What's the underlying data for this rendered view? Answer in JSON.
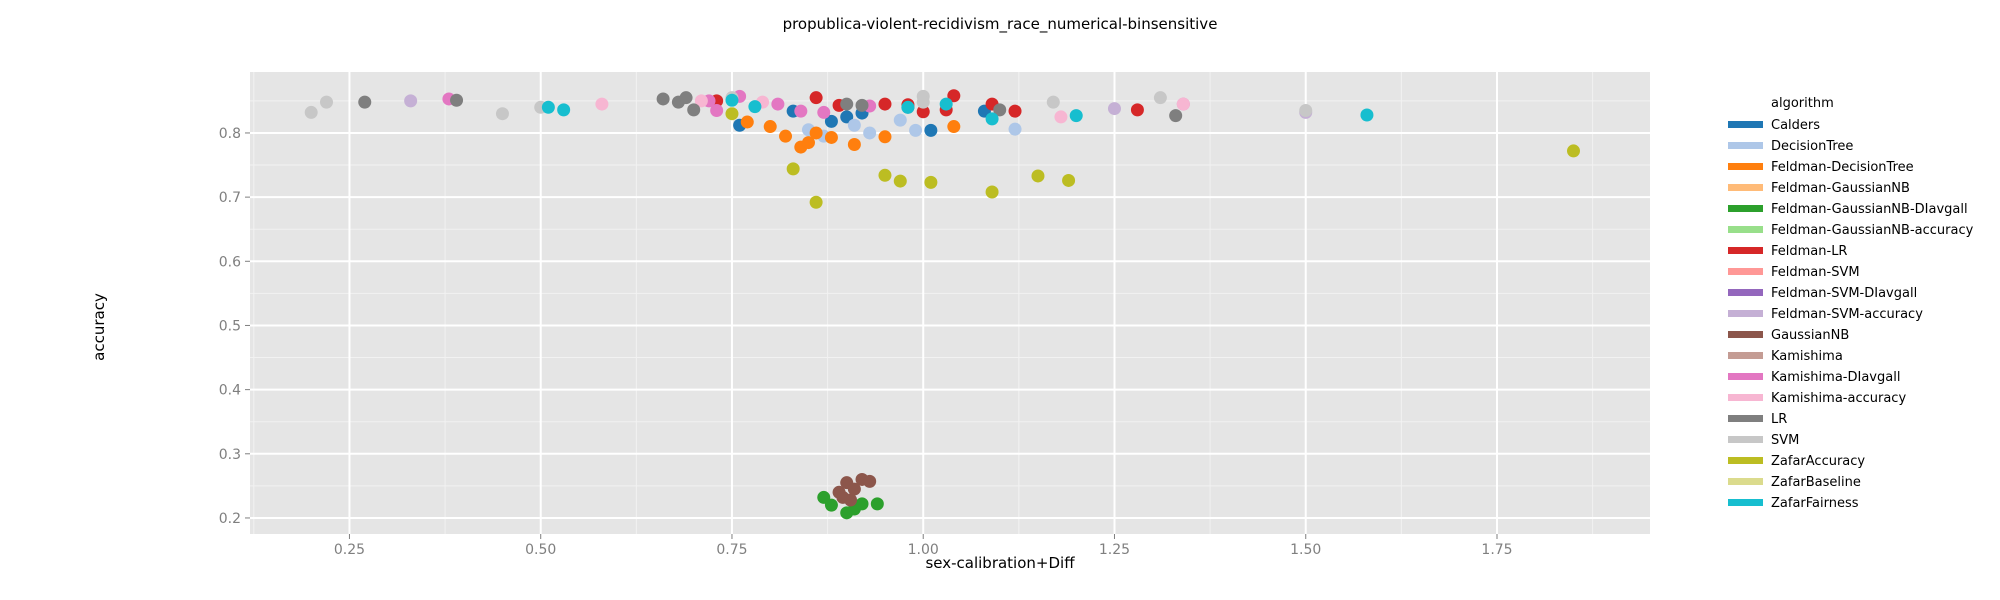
{
  "chart_data": {
    "type": "scatter",
    "title": "propublica-violent-recidivism_race_numerical-binsensitive",
    "xlabel": "sex-calibration+Diff",
    "ylabel": "accuracy",
    "xlim": [
      0.12,
      1.95
    ],
    "ylim": [
      0.175,
      0.895
    ],
    "xticks": [
      0.25,
      0.5,
      0.75,
      1.0,
      1.25,
      1.5,
      1.75
    ],
    "xtick_labels": [
      "0.25",
      "0.50",
      "0.75",
      "1.00",
      "1.25",
      "1.50",
      "1.75"
    ],
    "yticks": [
      0.2,
      0.3,
      0.4,
      0.5,
      0.6,
      0.7,
      0.8
    ],
    "ytick_labels": [
      "0.2",
      "0.3",
      "0.4",
      "0.5",
      "0.6",
      "0.7",
      "0.8"
    ],
    "grid": true,
    "legend_title": "algorithm",
    "legend_position": "right",
    "series": [
      {
        "name": "Calders",
        "color": "#1f77b4",
        "points": [
          [
            0.76,
            0.812
          ],
          [
            0.83,
            0.834
          ],
          [
            0.88,
            0.818
          ],
          [
            0.92,
            0.831
          ],
          [
            0.98,
            0.84
          ],
          [
            1.01,
            0.804
          ],
          [
            1.08,
            0.834
          ],
          [
            0.9,
            0.825
          ]
        ]
      },
      {
        "name": "DecisionTree",
        "color": "#aec7e8",
        "points": [
          [
            0.85,
            0.805
          ],
          [
            0.91,
            0.812
          ],
          [
            0.93,
            0.8
          ],
          [
            0.97,
            0.82
          ],
          [
            0.99,
            0.804
          ],
          [
            1.12,
            0.806
          ],
          [
            0.87,
            0.795
          ]
        ]
      },
      {
        "name": "Feldman-DecisionTree",
        "color": "#ff7f0e",
        "points": [
          [
            0.77,
            0.817
          ],
          [
            0.8,
            0.81
          ],
          [
            0.82,
            0.795
          ],
          [
            0.84,
            0.778
          ],
          [
            0.85,
            0.785
          ],
          [
            0.86,
            0.8
          ],
          [
            0.88,
            0.793
          ],
          [
            0.91,
            0.782
          ],
          [
            0.95,
            0.794
          ],
          [
            1.04,
            0.81
          ]
        ]
      },
      {
        "name": "Feldman-GaussianNB",
        "color": "#ffbb78",
        "points": []
      },
      {
        "name": "Feldman-GaussianNB-DIavgall",
        "color": "#2ca02c",
        "points": [
          [
            0.87,
            0.232
          ],
          [
            0.88,
            0.22
          ],
          [
            0.9,
            0.208
          ],
          [
            0.91,
            0.214
          ],
          [
            0.92,
            0.222
          ],
          [
            0.94,
            0.222
          ]
        ]
      },
      {
        "name": "Feldman-GaussianNB-accuracy",
        "color": "#98df8a",
        "points": []
      },
      {
        "name": "Feldman-LR",
        "color": "#d62728",
        "points": [
          [
            0.73,
            0.85
          ],
          [
            0.86,
            0.855
          ],
          [
            0.89,
            0.843
          ],
          [
            0.95,
            0.845
          ],
          [
            0.98,
            0.844
          ],
          [
            1.0,
            0.833
          ],
          [
            1.03,
            0.836
          ],
          [
            1.04,
            0.858
          ],
          [
            1.09,
            0.845
          ],
          [
            1.12,
            0.834
          ],
          [
            1.28,
            0.836
          ]
        ]
      },
      {
        "name": "Feldman-SVM",
        "color": "#ff9896",
        "points": []
      },
      {
        "name": "Feldman-SVM-DIavgall",
        "color": "#9467bd",
        "points": []
      },
      {
        "name": "Feldman-SVM-accuracy",
        "color": "#c5b0d5",
        "points": [
          [
            0.33,
            0.85
          ],
          [
            1.25,
            0.838
          ],
          [
            1.5,
            0.832
          ]
        ]
      },
      {
        "name": "GaussianNB",
        "color": "#8c564b",
        "points": [
          [
            0.89,
            0.24
          ],
          [
            0.9,
            0.255
          ],
          [
            0.91,
            0.245
          ],
          [
            0.92,
            0.26
          ],
          [
            0.93,
            0.257
          ],
          [
            0.895,
            0.232
          ],
          [
            0.905,
            0.228
          ]
        ]
      },
      {
        "name": "Kamishima",
        "color": "#c49c94",
        "points": []
      },
      {
        "name": "Kamishima-DIavgall",
        "color": "#e377c2",
        "points": [
          [
            0.38,
            0.853
          ],
          [
            0.72,
            0.85
          ],
          [
            0.73,
            0.835
          ],
          [
            0.76,
            0.857
          ],
          [
            0.81,
            0.845
          ],
          [
            0.84,
            0.834
          ],
          [
            0.87,
            0.832
          ],
          [
            0.93,
            0.842
          ],
          [
            1.34,
            0.845
          ]
        ]
      },
      {
        "name": "Kamishima-accuracy",
        "color": "#f7b6d2",
        "points": [
          [
            0.58,
            0.845
          ],
          [
            0.71,
            0.85
          ],
          [
            0.79,
            0.848
          ],
          [
            1.18,
            0.825
          ],
          [
            1.34,
            0.845
          ]
        ]
      },
      {
        "name": "LR",
        "color": "#7f7f7f",
        "points": [
          [
            0.27,
            0.848
          ],
          [
            0.39,
            0.851
          ],
          [
            0.66,
            0.853
          ],
          [
            0.68,
            0.848
          ],
          [
            0.69,
            0.855
          ],
          [
            0.7,
            0.836
          ],
          [
            0.9,
            0.845
          ],
          [
            0.92,
            0.843
          ],
          [
            1.1,
            0.836
          ],
          [
            1.33,
            0.827
          ]
        ]
      },
      {
        "name": "SVM",
        "color": "#c7c7c7",
        "points": [
          [
            0.2,
            0.832
          ],
          [
            0.22,
            0.848
          ],
          [
            0.45,
            0.83
          ],
          [
            0.5,
            0.84
          ],
          [
            0.75,
            0.855
          ],
          [
            1.0,
            0.857
          ],
          [
            1.0,
            0.848
          ],
          [
            1.17,
            0.848
          ],
          [
            1.31,
            0.855
          ],
          [
            1.5,
            0.835
          ]
        ]
      },
      {
        "name": "ZafarAccuracy",
        "color": "#bcbd22",
        "points": [
          [
            0.75,
            0.83
          ],
          [
            0.83,
            0.744
          ],
          [
            0.86,
            0.692
          ],
          [
            0.95,
            0.734
          ],
          [
            0.97,
            0.725
          ],
          [
            1.01,
            0.723
          ],
          [
            1.09,
            0.708
          ],
          [
            1.15,
            0.733
          ],
          [
            1.19,
            0.726
          ],
          [
            1.85,
            0.772
          ]
        ]
      },
      {
        "name": "ZafarBaseline",
        "color": "#dbdb8d",
        "points": []
      },
      {
        "name": "ZafarFairness",
        "color": "#17becf",
        "points": [
          [
            0.51,
            0.84
          ],
          [
            0.53,
            0.836
          ],
          [
            0.75,
            0.851
          ],
          [
            0.78,
            0.841
          ],
          [
            0.98,
            0.84
          ],
          [
            1.03,
            0.845
          ],
          [
            1.09,
            0.822
          ],
          [
            1.2,
            0.827
          ],
          [
            1.58,
            0.828
          ]
        ]
      }
    ]
  }
}
